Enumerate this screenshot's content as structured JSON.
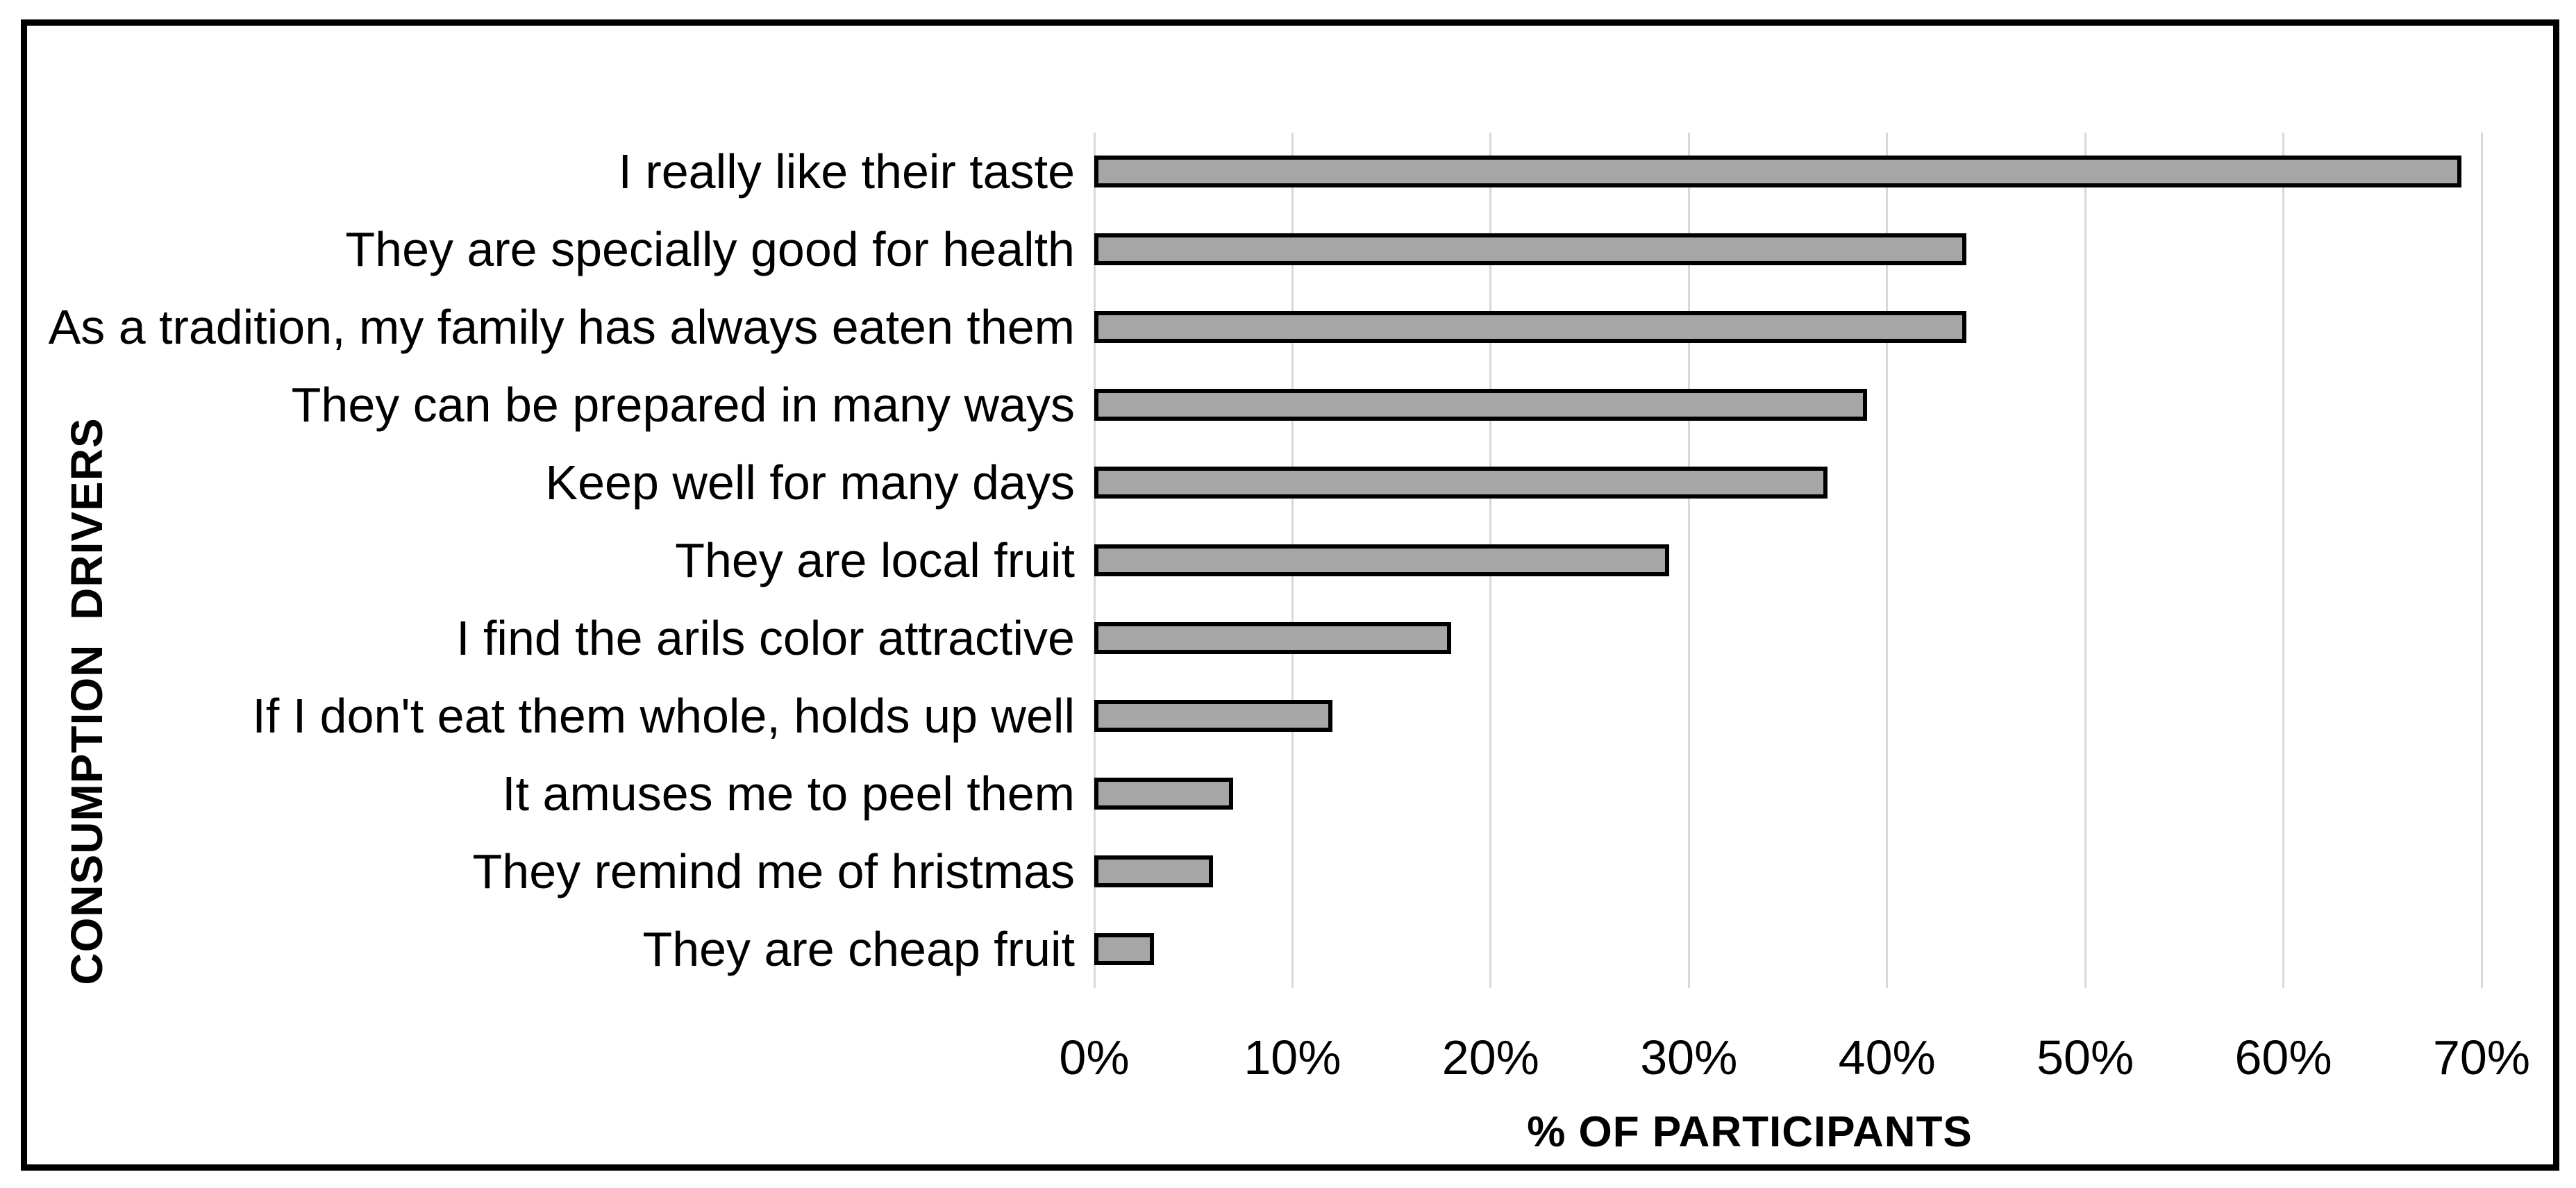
{
  "figure": {
    "background": "#ffffff",
    "frame_border_color": "#000000"
  },
  "chart_data": {
    "type": "bar",
    "orientation": "horizontal",
    "title": "",
    "xlabel": "% OF PARTICIPANTS",
    "ylabel": "CONSUMPTION DRIVERS",
    "categories": [
      "I really like their taste",
      "They are specially good for health",
      "As a tradition, my family has always eaten them",
      "They can be prepared in many ways",
      "Keep well for many days",
      "They are local fruit",
      "I find the arils color attractive",
      "If I don't eat them whole, holds up well",
      "It amuses me to peel them",
      "They remind me of hristmas",
      "They are cheap fruit"
    ],
    "values": [
      69,
      44,
      44,
      39,
      37,
      29,
      18,
      12,
      7,
      6,
      3
    ],
    "value_unit": "%",
    "xlim": [
      0,
      70
    ],
    "x_ticks": [
      "0%",
      "10%",
      "20%",
      "30%",
      "40%",
      "50%",
      "60%",
      "70%"
    ],
    "grid": "vertical-gridlines-on",
    "legend": "none",
    "bar_fill_color": "#a6a6a6",
    "bar_border_color": "#000000",
    "gridline_color": "#d9d9d9"
  }
}
